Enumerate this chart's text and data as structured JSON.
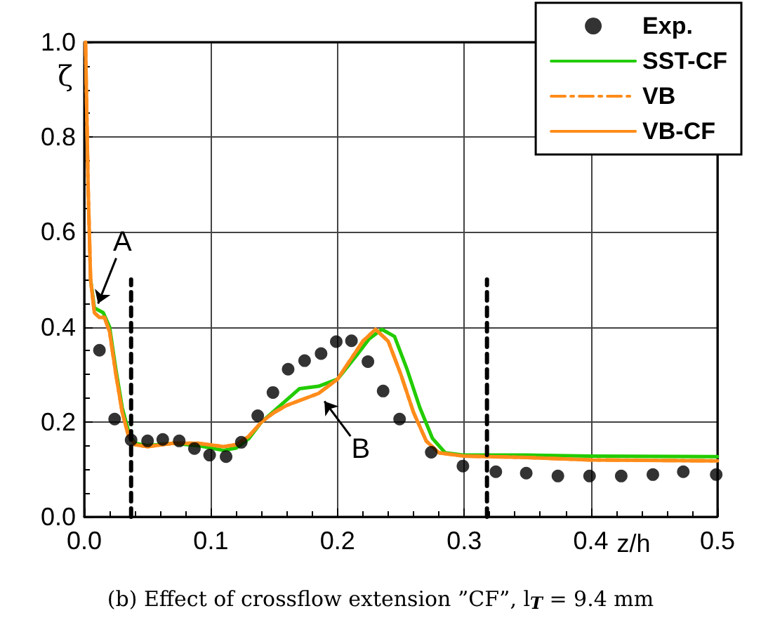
{
  "chart_data": {
    "type": "line",
    "title": "(b) Effect of crossflow extension ”CF”, l$_{T}$ = 9.4 mm",
    "xlabel": "z/h",
    "ylabel": "ζ",
    "xlim": [
      0,
      0.5
    ],
    "ylim": [
      0,
      1
    ],
    "xticks": [
      {
        "value": 0,
        "label": "0.0"
      },
      0.1,
      0.2,
      0.3,
      0.4,
      0.5
    ],
    "yticks": [
      {
        "value": 0,
        "label": "0.0"
      },
      0.2,
      0.4,
      0.6,
      0.8,
      {
        "value": 1,
        "label": "1.0"
      }
    ],
    "grid": true,
    "legend": "top right",
    "annotations": [
      {
        "text": "A",
        "x": 0.008,
        "y": 0.43
      },
      {
        "text": "B",
        "x": 0.185,
        "y": 0.26
      }
    ],
    "series": [
      {
        "name": "Exp.",
        "type": "scatter",
        "marker": "circle",
        "color": "#000000",
        "x": [
          0.012,
          0.024,
          0.037,
          0.05,
          0.062,
          0.075,
          0.087,
          0.099,
          0.112,
          0.124,
          0.137,
          0.149,
          0.161,
          0.174,
          0.187,
          0.199,
          0.211,
          0.224,
          0.236,
          0.249,
          0.274,
          0.299,
          0.325,
          0.349,
          0.374,
          0.399,
          0.424,
          0.449,
          0.473,
          0.499
        ],
        "values": [
          0.351,
          0.206,
          0.162,
          0.16,
          0.163,
          0.16,
          0.144,
          0.13,
          0.127,
          0.157,
          0.213,
          0.262,
          0.311,
          0.329,
          0.344,
          0.369,
          0.371,
          0.327,
          0.265,
          0.206,
          0.136,
          0.107,
          0.095,
          0.092,
          0.086,
          0.086,
          0.086,
          0.089,
          0.095,
          0.089
        ]
      },
      {
        "name": "SST-CF",
        "line_style": "solid",
        "color": "#22cc00",
        "x": [
          0.005,
          0.008,
          0.015,
          0.02,
          0.025,
          0.03,
          0.036,
          0.04,
          0.05,
          0.07,
          0.09,
          0.11,
          0.12,
          0.13,
          0.14,
          0.155,
          0.17,
          0.185,
          0.2,
          0.215,
          0.225,
          0.235,
          0.245,
          0.255,
          0.265,
          0.275,
          0.285,
          0.3,
          0.35,
          0.4,
          0.5
        ],
        "values": [
          0.5,
          0.44,
          0.43,
          0.4,
          0.31,
          0.23,
          0.17,
          0.155,
          0.15,
          0.155,
          0.15,
          0.14,
          0.145,
          0.165,
          0.2,
          0.235,
          0.27,
          0.275,
          0.29,
          0.34,
          0.375,
          0.395,
          0.38,
          0.31,
          0.23,
          0.165,
          0.135,
          0.13,
          0.13,
          0.128,
          0.127
        ]
      },
      {
        "name": "VB",
        "line_style": "dashdot",
        "color": "#ff8c1a",
        "x": [
          0.001,
          0.003,
          0.005,
          0.008,
          0.012,
          0.016,
          0.02,
          0.025,
          0.03,
          0.035,
          0.04,
          0.05,
          0.07,
          0.09,
          0.11,
          0.12,
          0.13,
          0.14,
          0.15,
          0.16,
          0.175,
          0.185,
          0.2,
          0.21,
          0.22,
          0.23,
          0.24,
          0.25,
          0.26,
          0.27,
          0.28,
          0.3,
          0.35,
          0.4,
          0.5
        ],
        "values": [
          1.0,
          0.7,
          0.5,
          0.43,
          0.42,
          0.42,
          0.39,
          0.3,
          0.22,
          0.17,
          0.152,
          0.148,
          0.155,
          0.155,
          0.148,
          0.152,
          0.17,
          0.2,
          0.22,
          0.235,
          0.25,
          0.26,
          0.29,
          0.33,
          0.37,
          0.395,
          0.37,
          0.3,
          0.22,
          0.16,
          0.135,
          0.128,
          0.125,
          0.12,
          0.118
        ]
      },
      {
        "name": "VB-CF",
        "line_style": "solid",
        "color": "#ff8c1a",
        "x": [
          0.001,
          0.003,
          0.005,
          0.008,
          0.012,
          0.016,
          0.02,
          0.025,
          0.03,
          0.035,
          0.04,
          0.05,
          0.07,
          0.09,
          0.11,
          0.12,
          0.13,
          0.14,
          0.15,
          0.16,
          0.175,
          0.185,
          0.2,
          0.21,
          0.22,
          0.23,
          0.24,
          0.25,
          0.26,
          0.27,
          0.28,
          0.3,
          0.35,
          0.4,
          0.5
        ],
        "values": [
          1.0,
          0.7,
          0.5,
          0.43,
          0.42,
          0.42,
          0.39,
          0.3,
          0.22,
          0.17,
          0.152,
          0.148,
          0.155,
          0.155,
          0.148,
          0.152,
          0.17,
          0.2,
          0.22,
          0.235,
          0.25,
          0.26,
          0.29,
          0.33,
          0.37,
          0.395,
          0.37,
          0.3,
          0.22,
          0.16,
          0.135,
          0.128,
          0.125,
          0.12,
          0.118
        ]
      },
      {
        "type": "line",
        "line_style": "dashed",
        "color": "#000000",
        "x": [
          0.037,
          0.037
        ],
        "values": [
          0,
          0.5
        ]
      },
      {
        "type": "line",
        "line_style": "dashed",
        "color": "#000000",
        "x": [
          0.318,
          0.318
        ],
        "values": [
          0,
          0.5
        ]
      }
    ]
  }
}
